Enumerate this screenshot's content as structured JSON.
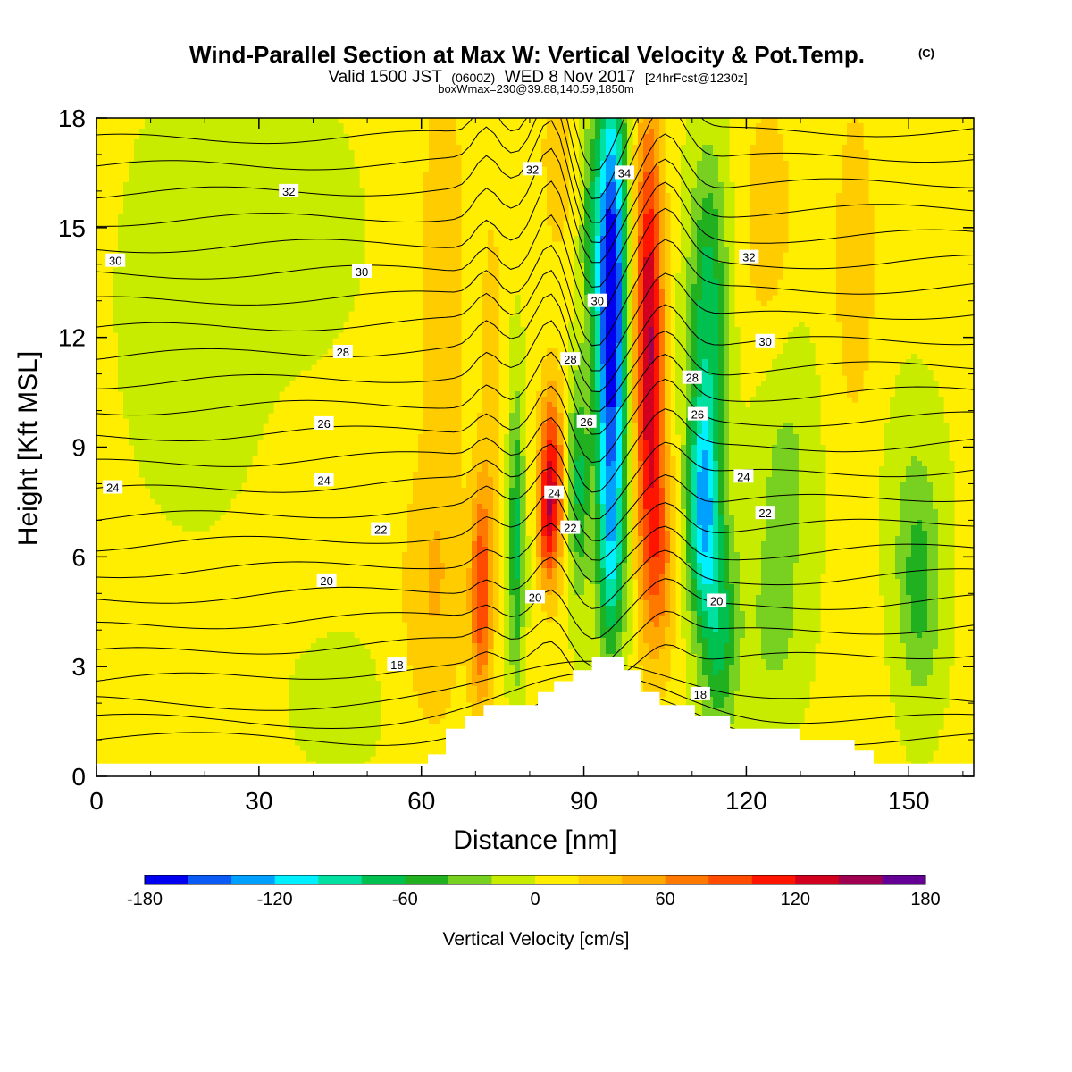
{
  "header": {
    "title": "Wind-Parallel Section at Max W: Vertical Velocity & Pot.Temp.",
    "title_mark": "(C)",
    "valid_a": "Valid 1500 JST",
    "valid_b": "(0600Z)",
    "valid_c": "WED 8 Nov 2017",
    "valid_d": "[24hrFcst@1230z]",
    "box_info": "boxWmax=230@39.88,140.59,1850m"
  },
  "chart_data": {
    "type": "heatmap",
    "xlabel": "Distance [nm]",
    "ylabel": "Height [Kft MSL]",
    "xlim": [
      0,
      162
    ],
    "ylim": [
      0,
      18
    ],
    "xticks": [
      0,
      30,
      60,
      90,
      120,
      150
    ],
    "yticks": [
      0,
      3,
      6,
      9,
      12,
      15,
      18
    ],
    "colorbar": {
      "label": "Vertical Velocity [cm/s]",
      "levels": [
        -180,
        -160,
        -140,
        -120,
        -100,
        -80,
        -60,
        -40,
        -20,
        0,
        20,
        40,
        60,
        80,
        100,
        120,
        140,
        160,
        180
      ],
      "tick_values": [
        -180,
        -120,
        -60,
        0,
        60,
        120,
        180
      ],
      "colors": [
        "#0000f0",
        "#0a5af5",
        "#00a0ff",
        "#00f0ff",
        "#00e0a0",
        "#00c050",
        "#20b020",
        "#78d020",
        "#c8ec00",
        "#ffee00",
        "#ffcc00",
        "#ffaa00",
        "#ff7800",
        "#ff4b00",
        "#ff1400",
        "#d2001e",
        "#a00050",
        "#640096"
      ]
    },
    "terrain_kft": [
      [
        0,
        0.35
      ],
      [
        61.2,
        0.35
      ],
      [
        61.2,
        0.6
      ],
      [
        64.5,
        0.6
      ],
      [
        64.5,
        1.3
      ],
      [
        68,
        1.3
      ],
      [
        68,
        1.65
      ],
      [
        71.5,
        1.65
      ],
      [
        71.5,
        1.95
      ],
      [
        81.5,
        1.95
      ],
      [
        81.5,
        2.3
      ],
      [
        84.5,
        2.3
      ],
      [
        84.5,
        2.6
      ],
      [
        88,
        2.6
      ],
      [
        88,
        2.9
      ],
      [
        91.5,
        2.9
      ],
      [
        91.5,
        3.25
      ],
      [
        97.5,
        3.25
      ],
      [
        97.5,
        2.9
      ],
      [
        100.5,
        2.9
      ],
      [
        100.5,
        2.3
      ],
      [
        104,
        2.3
      ],
      [
        104,
        1.95
      ],
      [
        110.5,
        1.95
      ],
      [
        110.5,
        1.65
      ],
      [
        117,
        1.65
      ],
      [
        117,
        1.3
      ],
      [
        130,
        1.3
      ],
      [
        130,
        1.0
      ],
      [
        140,
        1.0
      ],
      [
        140,
        0.7
      ],
      [
        143.5,
        0.7
      ],
      [
        143.5,
        0.35
      ],
      [
        162,
        0.35
      ]
    ],
    "velocity_features": [
      {
        "x": 95,
        "y": 13,
        "value": -180
      },
      {
        "x": 102,
        "y": 12,
        "value": 120
      },
      {
        "x": 84,
        "y": 7.5,
        "value": 130
      },
      {
        "x": 112,
        "y": 8,
        "value": -110
      },
      {
        "x": 89,
        "y": 8,
        "value": -60
      },
      {
        "x": 77.5,
        "y": 6.5,
        "value": -60
      },
      {
        "x": 71,
        "y": 5.5,
        "value": 90
      },
      {
        "x": 152,
        "y": 5,
        "value": -45
      },
      {
        "x": 18,
        "y": 13,
        "value": -10
      },
      {
        "x": 124,
        "y": 15,
        "value": 40
      }
    ],
    "theta_levels": [
      18,
      20,
      22,
      24,
      26,
      28,
      30,
      32,
      34
    ],
    "contour_labels": [
      {
        "text": "32",
        "x": 35.5,
        "y": 16.0
      },
      {
        "text": "30",
        "x": 3.5,
        "y": 14.1
      },
      {
        "text": "30",
        "x": 49,
        "y": 13.8
      },
      {
        "text": "28",
        "x": 45.5,
        "y": 11.6
      },
      {
        "text": "26",
        "x": 42,
        "y": 9.65
      },
      {
        "text": "24",
        "x": 3,
        "y": 7.9
      },
      {
        "text": "24",
        "x": 42,
        "y": 8.1
      },
      {
        "text": "22",
        "x": 52.5,
        "y": 6.75
      },
      {
        "text": "20",
        "x": 42.5,
        "y": 5.35
      },
      {
        "text": "18",
        "x": 55.5,
        "y": 3.05
      },
      {
        "text": "32",
        "x": 80.5,
        "y": 16.6
      },
      {
        "text": "34",
        "x": 97.5,
        "y": 16.5
      },
      {
        "text": "30",
        "x": 92.5,
        "y": 13.0
      },
      {
        "text": "28",
        "x": 87.5,
        "y": 11.4
      },
      {
        "text": "26",
        "x": 90.5,
        "y": 9.7
      },
      {
        "text": "24",
        "x": 84.5,
        "y": 7.75
      },
      {
        "text": "22",
        "x": 87.5,
        "y": 6.8
      },
      {
        "text": "20",
        "x": 81,
        "y": 4.9
      },
      {
        "text": "28",
        "x": 110,
        "y": 10.9
      },
      {
        "text": "26",
        "x": 111,
        "y": 9.9
      },
      {
        "text": "24",
        "x": 119.5,
        "y": 8.2
      },
      {
        "text": "22",
        "x": 123.5,
        "y": 7.2
      },
      {
        "text": "20",
        "x": 114.5,
        "y": 4.8
      },
      {
        "text": "18",
        "x": 111.5,
        "y": 2.25
      },
      {
        "text": "32",
        "x": 120.5,
        "y": 14.2
      },
      {
        "text": "30",
        "x": 123.5,
        "y": 11.9
      }
    ]
  }
}
